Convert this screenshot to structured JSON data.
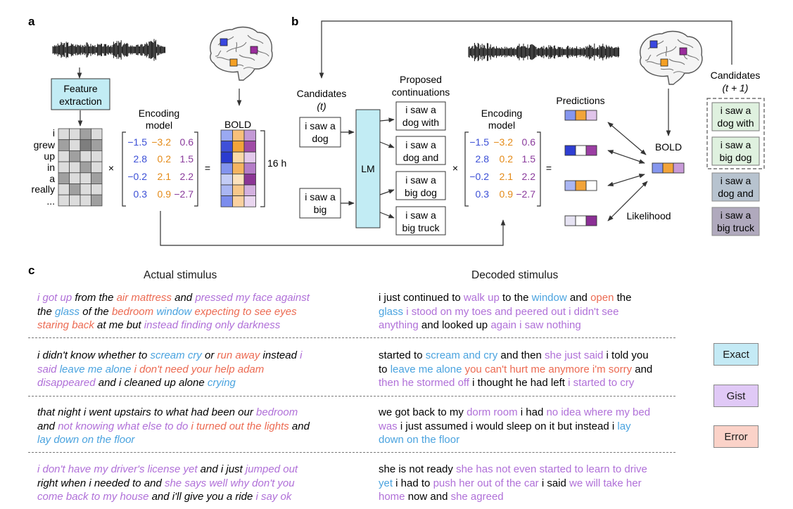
{
  "panels": {
    "a": "a",
    "b": "b",
    "c": "c"
  },
  "panel_a": {
    "feature_box": [
      "Feature",
      "extraction"
    ],
    "words": [
      "i",
      "grew",
      "up",
      "in",
      "a",
      "really",
      "..."
    ],
    "encoding_label": [
      "Encoding",
      "model"
    ],
    "matrix": [
      [
        "−1.5",
        "−3.2",
        "0.6"
      ],
      [
        "2.8",
        "0.2",
        "1.5"
      ],
      [
        "−0.2",
        "2.1",
        "2.2"
      ],
      [
        "0.3",
        "0.9",
        "−2.7"
      ]
    ],
    "times": "×",
    "equals": "=",
    "bold_label": "BOLD",
    "duration": "16 h"
  },
  "panel_b": {
    "candidates_t": [
      "Candidates",
      "(t)"
    ],
    "cand_boxes": [
      [
        "i saw a",
        "dog"
      ],
      [
        "i saw a",
        "big"
      ]
    ],
    "lm": "LM",
    "proposed": [
      "Proposed",
      "continuations"
    ],
    "continuations": [
      [
        "i saw a",
        "dog with"
      ],
      [
        "i saw a",
        "dog and"
      ],
      [
        "i saw a",
        "big dog"
      ],
      [
        "i saw a",
        "big truck"
      ]
    ],
    "encoding_label": [
      "Encoding",
      "model"
    ],
    "matrix": [
      [
        "−1.5",
        "−3.2",
        "0.6"
      ],
      [
        "2.8",
        "0.2",
        "1.5"
      ],
      [
        "−0.2",
        "2.1",
        "2.2"
      ],
      [
        "0.3",
        "0.9",
        "−2.7"
      ]
    ],
    "times": "×",
    "equals": "=",
    "predictions": "Predictions",
    "bold_label": "BOLD",
    "likelihood": "Likelihood",
    "candidates_t1": [
      "Candidates",
      "(t + 1)"
    ],
    "next_candidates": [
      [
        "i saw a",
        "dog with"
      ],
      [
        "i saw a",
        "big dog"
      ],
      [
        "i saw a",
        "dog and"
      ],
      [
        "i saw a",
        "big truck"
      ]
    ]
  },
  "panel_c": {
    "actual_header": "Actual stimulus",
    "decoded_header": "Decoded stimulus",
    "legend": {
      "exact": "Exact",
      "gist": "Gist",
      "error": "Error"
    },
    "colors": {
      "exact": "#4aa3df",
      "gist": "#b070d8",
      "error": "#ec6a52",
      "plain": "#000000"
    },
    "actual": [
      [
        [
          [
            "g",
            "i got up"
          ],
          [
            "p",
            " from the "
          ],
          [
            "r",
            "air mattress"
          ],
          [
            "p",
            " and "
          ],
          [
            "g",
            "pressed my face against"
          ]
        ],
        [
          [
            "p",
            "the "
          ],
          [
            "e",
            "glass"
          ],
          [
            "p",
            " of the "
          ],
          [
            "r",
            "bedroom"
          ],
          [
            "p",
            " "
          ],
          [
            "e",
            "window"
          ],
          [
            "p",
            " "
          ],
          [
            "r",
            "expecting to see eyes"
          ]
        ],
        [
          [
            "r",
            "staring back"
          ],
          [
            "p",
            " at me but "
          ],
          [
            "g",
            "instead finding only darkness"
          ]
        ]
      ],
      [
        [
          [
            "p",
            "i didn't know whether to "
          ],
          [
            "e",
            "scream"
          ],
          [
            "p",
            " "
          ],
          [
            "e",
            "cry"
          ],
          [
            "p",
            " or "
          ],
          [
            "r",
            "run away"
          ],
          [
            "p",
            " instead "
          ],
          [
            "g",
            "i"
          ]
        ],
        [
          [
            "g",
            "said"
          ],
          [
            "p",
            " "
          ],
          [
            "e",
            "leave me alone"
          ],
          [
            "p",
            " "
          ],
          [
            "r",
            "i don't need your help adam"
          ]
        ],
        [
          [
            "g",
            "disappeared"
          ],
          [
            "p",
            " and i cleaned up alone "
          ],
          [
            "e",
            "crying"
          ]
        ]
      ],
      [
        [
          [
            "p",
            "that night i went upstairs to what had been our "
          ],
          [
            "g",
            "bedroom"
          ]
        ],
        [
          [
            "p",
            "and "
          ],
          [
            "g",
            "not knowing what else to do"
          ],
          [
            "p",
            " "
          ],
          [
            "r",
            "i turned out the lights"
          ],
          [
            "p",
            " and"
          ]
        ],
        [
          [
            "e",
            "lay down on the floor"
          ]
        ]
      ],
      [
        [
          [
            "g",
            "i don't have my driver's license yet"
          ],
          [
            "p",
            " and i just "
          ],
          [
            "g",
            "jumped out"
          ]
        ],
        [
          [
            "p",
            "right when i needed to and "
          ],
          [
            "g",
            "she says well why don't you"
          ]
        ],
        [
          [
            "g",
            "come back to my house"
          ],
          [
            "p",
            " and i'll give you a ride "
          ],
          [
            "g",
            "i say ok"
          ]
        ]
      ]
    ],
    "decoded": [
      [
        [
          [
            "p",
            "i just continued to "
          ],
          [
            "g",
            "walk up"
          ],
          [
            "p",
            " to the "
          ],
          [
            "e",
            "window"
          ],
          [
            "p",
            " and "
          ],
          [
            "r",
            "open"
          ],
          [
            "p",
            " the"
          ]
        ],
        [
          [
            "e",
            "glass"
          ],
          [
            "p",
            " "
          ],
          [
            "g",
            "i stood on my toes and peered out i didn't see"
          ]
        ],
        [
          [
            "g",
            "anything"
          ],
          [
            "p",
            " and looked up "
          ],
          [
            "g",
            "again i saw nothing"
          ]
        ]
      ],
      [
        [
          [
            "p",
            "started to "
          ],
          [
            "e",
            "scream and cry"
          ],
          [
            "p",
            " and then "
          ],
          [
            "g",
            "she just said"
          ],
          [
            "p",
            " i told you"
          ]
        ],
        [
          [
            "p",
            "to "
          ],
          [
            "e",
            "leave me alone"
          ],
          [
            "p",
            " "
          ],
          [
            "r",
            "you can't hurt me anymore i'm sorry"
          ],
          [
            "p",
            " and"
          ]
        ],
        [
          [
            "g",
            "then he stormed off"
          ],
          [
            "p",
            " i thought he had left "
          ],
          [
            "g",
            "i started to cry"
          ]
        ]
      ],
      [
        [
          [
            "p",
            "we got back to my "
          ],
          [
            "g",
            "dorm room"
          ],
          [
            "p",
            " i had "
          ],
          [
            "g",
            "no idea where my bed"
          ]
        ],
        [
          [
            "g",
            "was"
          ],
          [
            "p",
            " i just assumed i would sleep on it but instead i "
          ],
          [
            "e",
            "lay"
          ]
        ],
        [
          [
            "e",
            "down on the floor"
          ]
        ]
      ],
      [
        [
          [
            "p",
            "she is not ready "
          ],
          [
            "g",
            "she has not even started to learn to drive"
          ]
        ],
        [
          [
            "e",
            "yet"
          ],
          [
            "p",
            " i had to "
          ],
          [
            "g",
            "push her out of the car"
          ],
          [
            "p",
            " i said "
          ],
          [
            "g",
            "we will take her"
          ]
        ],
        [
          [
            "g",
            "home"
          ],
          [
            "p",
            " now and "
          ],
          [
            "g",
            "she agreed"
          ]
        ]
      ]
    ]
  }
}
